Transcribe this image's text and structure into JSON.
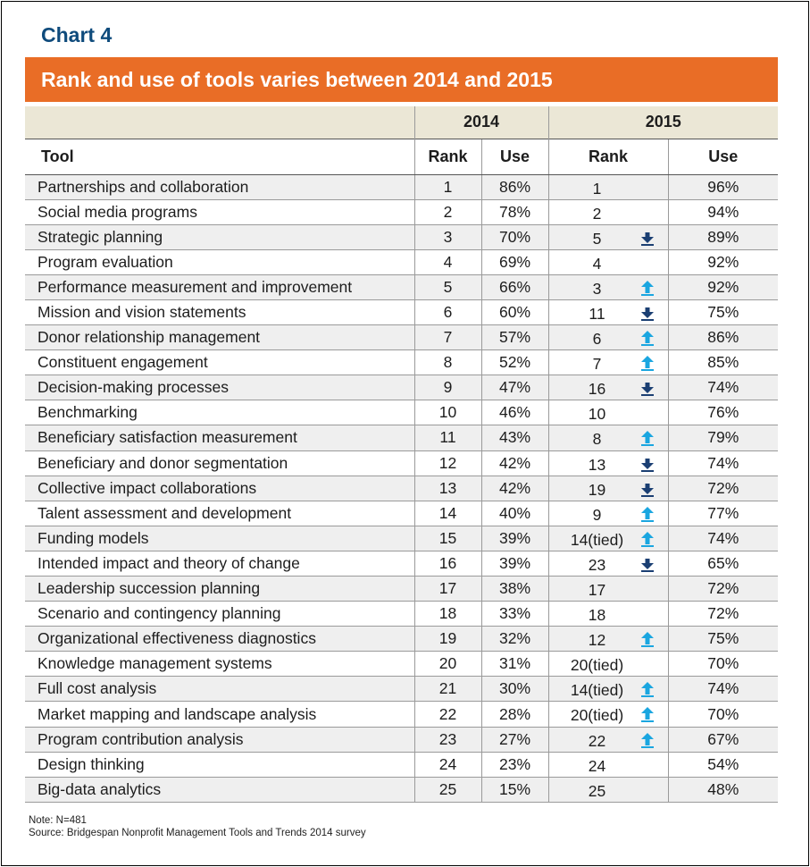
{
  "chart_label": "Chart 4",
  "chart_data": {
    "type": "table",
    "title": "Rank and use of tools varies between 2014 and 2015",
    "year_headers": [
      "2014",
      "2015"
    ],
    "column_headers": {
      "tool": "Tool",
      "rank_2014": "Rank",
      "use_2014": "Use",
      "rank_2015": "Rank",
      "use_2015": "Use"
    },
    "colors": {
      "title_bar": "#e96d26",
      "chart_label": "#0f4b7c",
      "arrow_up": "#1aa6e0",
      "arrow_down": "#1b3f73"
    },
    "rows": [
      {
        "tool": "Partnerships and collaboration",
        "rank_2014": "1",
        "use_2014": "86%",
        "rank_2015": "1",
        "change": "none",
        "use_2015": "96%"
      },
      {
        "tool": "Social media programs",
        "rank_2014": "2",
        "use_2014": "78%",
        "rank_2015": "2",
        "change": "none",
        "use_2015": "94%"
      },
      {
        "tool": "Strategic planning",
        "rank_2014": "3",
        "use_2014": "70%",
        "rank_2015": "5",
        "change": "down",
        "use_2015": "89%"
      },
      {
        "tool": "Program evaluation",
        "rank_2014": "4",
        "use_2014": "69%",
        "rank_2015": "4",
        "change": "none",
        "use_2015": "92%"
      },
      {
        "tool": "Performance measurement and improvement",
        "rank_2014": "5",
        "use_2014": "66%",
        "rank_2015": "3",
        "change": "up",
        "use_2015": "92%"
      },
      {
        "tool": "Mission and vision statements",
        "rank_2014": "6",
        "use_2014": "60%",
        "rank_2015": "11",
        "change": "down",
        "use_2015": "75%"
      },
      {
        "tool": "Donor relationship management",
        "rank_2014": "7",
        "use_2014": "57%",
        "rank_2015": "6",
        "change": "up",
        "use_2015": "86%"
      },
      {
        "tool": "Constituent engagement",
        "rank_2014": "8",
        "use_2014": "52%",
        "rank_2015": "7",
        "change": "up",
        "use_2015": "85%"
      },
      {
        "tool": "Decision-making processes",
        "rank_2014": "9",
        "use_2014": "47%",
        "rank_2015": "16",
        "change": "down",
        "use_2015": "74%"
      },
      {
        "tool": "Benchmarking",
        "rank_2014": "10",
        "use_2014": "46%",
        "rank_2015": "10",
        "change": "none",
        "use_2015": "76%"
      },
      {
        "tool": "Beneficiary satisfaction measurement",
        "rank_2014": "11",
        "use_2014": "43%",
        "rank_2015": "8",
        "change": "up",
        "use_2015": "79%"
      },
      {
        "tool": "Beneficiary and donor segmentation",
        "rank_2014": "12",
        "use_2014": "42%",
        "rank_2015": "13",
        "change": "down",
        "use_2015": "74%"
      },
      {
        "tool": "Collective impact collaborations",
        "rank_2014": "13",
        "use_2014": "42%",
        "rank_2015": "19",
        "change": "down",
        "use_2015": "72%"
      },
      {
        "tool": "Talent assessment and development",
        "rank_2014": "14",
        "use_2014": "40%",
        "rank_2015": "9",
        "change": "up",
        "use_2015": "77%"
      },
      {
        "tool": "Funding models",
        "rank_2014": "15",
        "use_2014": "39%",
        "rank_2015": "14(tied)",
        "change": "up",
        "use_2015": "74%"
      },
      {
        "tool": "Intended impact and theory of change",
        "rank_2014": "16",
        "use_2014": "39%",
        "rank_2015": "23",
        "change": "down",
        "use_2015": "65%"
      },
      {
        "tool": "Leadership succession planning",
        "rank_2014": "17",
        "use_2014": "38%",
        "rank_2015": "17",
        "change": "none",
        "use_2015": "72%"
      },
      {
        "tool": "Scenario and contingency planning",
        "rank_2014": "18",
        "use_2014": "33%",
        "rank_2015": "18",
        "change": "none",
        "use_2015": "72%"
      },
      {
        "tool": "Organizational effectiveness diagnostics",
        "rank_2014": "19",
        "use_2014": "32%",
        "rank_2015": "12",
        "change": "up",
        "use_2015": "75%"
      },
      {
        "tool": "Knowledge management systems",
        "rank_2014": "20",
        "use_2014": "31%",
        "rank_2015": "20(tied)",
        "change": "none",
        "use_2015": "70%"
      },
      {
        "tool": "Full cost analysis",
        "rank_2014": "21",
        "use_2014": "30%",
        "rank_2015": "14(tied)",
        "change": "up",
        "use_2015": "74%"
      },
      {
        "tool": "Market mapping and landscape analysis",
        "rank_2014": "22",
        "use_2014": "28%",
        "rank_2015": "20(tied)",
        "change": "up",
        "use_2015": "70%"
      },
      {
        "tool": "Program contribution analysis",
        "rank_2014": "23",
        "use_2014": "27%",
        "rank_2015": "22",
        "change": "up",
        "use_2015": "67%"
      },
      {
        "tool": "Design thinking",
        "rank_2014": "24",
        "use_2014": "23%",
        "rank_2015": "24",
        "change": "none",
        "use_2015": "54%"
      },
      {
        "tool": "Big-data analytics",
        "rank_2014": "25",
        "use_2014": "15%",
        "rank_2015": "25",
        "change": "none",
        "use_2015": "48%"
      }
    ]
  },
  "notes": {
    "note": "Note: N=481",
    "source": "Source: Bridgespan Nonprofit Management Tools and Trends 2014 survey"
  }
}
